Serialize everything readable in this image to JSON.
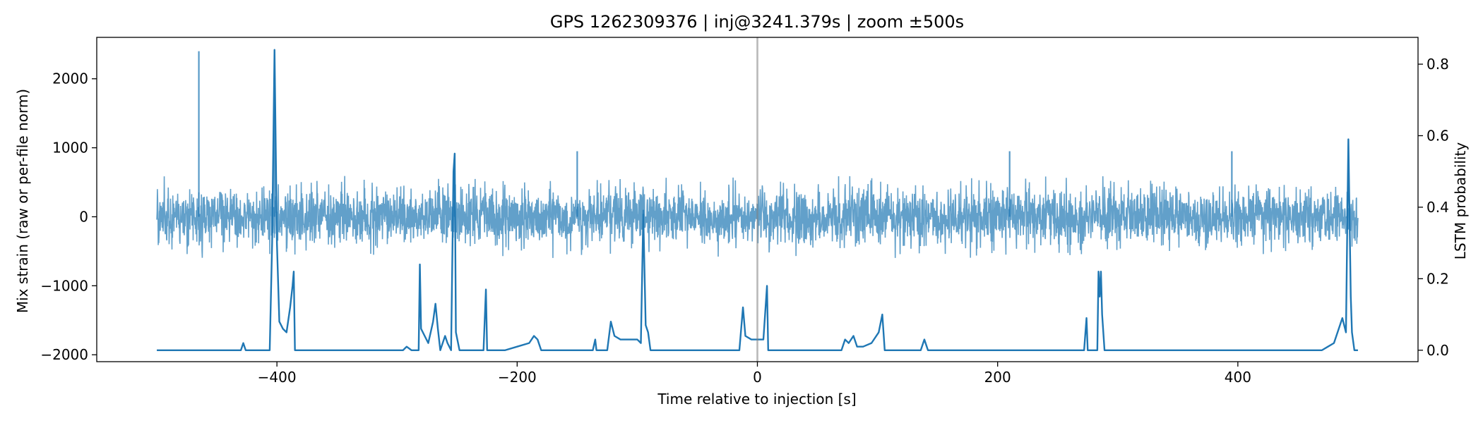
{
  "chart_data": {
    "type": "line",
    "title": "GPS 1262309376 | inj@3241.379s | zoom ±500s",
    "xlabel": "Time relative to injection [s]",
    "ylabel_left": "Mix strain (raw or per-file norm)",
    "ylabel_right": "LSTM probability",
    "xlim": [
      -550,
      550
    ],
    "ylim_left": [
      -2100,
      2600
    ],
    "ylim_right": [
      -0.032,
      0.875
    ],
    "x_ticks": [
      -400,
      -200,
      0,
      200,
      400
    ],
    "x_tick_labels": [
      "−400",
      "−200",
      "0",
      "200",
      "400"
    ],
    "y_left_ticks": [
      -2000,
      -1000,
      0,
      1000,
      2000
    ],
    "y_left_tick_labels": [
      "−2000",
      "−1000",
      "0",
      "1000",
      "2000"
    ],
    "y_right_ticks": [
      0.0,
      0.2,
      0.4,
      0.6,
      0.8
    ],
    "y_right_tick_labels": [
      "0.0",
      "0.2",
      "0.4",
      "0.6",
      "0.8"
    ],
    "injection_marker_x": 0,
    "grid": false,
    "legend": "none",
    "colors": {
      "strain": "#1f77b4",
      "probability": "#1f77b4",
      "injection_line": "#b0b0b0"
    },
    "series": [
      {
        "role": "strain",
        "axis": "left",
        "x_range": [
          -500,
          500
        ],
        "noise_envelope": 600,
        "spikes": [
          {
            "x": -465,
            "y": 2400
          },
          {
            "x": -402,
            "y": 2400
          },
          {
            "x": -252,
            "y": 800
          },
          {
            "x": -95,
            "y": 100
          },
          {
            "x": -150,
            "y": 950
          },
          {
            "x": 210,
            "y": 950
          },
          {
            "x": 395,
            "y": 950
          }
        ]
      },
      {
        "role": "probability",
        "axis": "right",
        "points": [
          [
            -500,
            0.0
          ],
          [
            -430,
            0.0
          ],
          [
            -428,
            0.02
          ],
          [
            -426,
            0.0
          ],
          [
            -406,
            0.0
          ],
          [
            -404,
            0.3
          ],
          [
            -402,
            0.84
          ],
          [
            -400,
            0.3
          ],
          [
            -398,
            0.08
          ],
          [
            -395,
            0.06
          ],
          [
            -392,
            0.05
          ],
          [
            -389,
            0.12
          ],
          [
            -387,
            0.18
          ],
          [
            -386,
            0.22
          ],
          [
            -385,
            0.0
          ],
          [
            -295,
            0.0
          ],
          [
            -292,
            0.01
          ],
          [
            -288,
            0.0
          ],
          [
            -282,
            0.0
          ],
          [
            -281,
            0.24
          ],
          [
            -280,
            0.06
          ],
          [
            -277,
            0.04
          ],
          [
            -274,
            0.02
          ],
          [
            -270,
            0.08
          ],
          [
            -268,
            0.13
          ],
          [
            -266,
            0.06
          ],
          [
            -264,
            0.0
          ],
          [
            -260,
            0.04
          ],
          [
            -258,
            0.02
          ],
          [
            -255,
            0.0
          ],
          [
            -253,
            0.5
          ],
          [
            -252,
            0.55
          ],
          [
            -251,
            0.05
          ],
          [
            -248,
            0.0
          ],
          [
            -228,
            0.0
          ],
          [
            -226,
            0.17
          ],
          [
            -225,
            0.0
          ],
          [
            -210,
            0.0
          ],
          [
            -200,
            0.01
          ],
          [
            -190,
            0.02
          ],
          [
            -186,
            0.04
          ],
          [
            -183,
            0.03
          ],
          [
            -180,
            0.0
          ],
          [
            -137,
            0.0
          ],
          [
            -135,
            0.03
          ],
          [
            -134,
            0.0
          ],
          [
            -125,
            0.0
          ],
          [
            -122,
            0.08
          ],
          [
            -119,
            0.04
          ],
          [
            -114,
            0.03
          ],
          [
            -108,
            0.03
          ],
          [
            -100,
            0.03
          ],
          [
            -97,
            0.02
          ],
          [
            -95,
            0.38
          ],
          [
            -93,
            0.07
          ],
          [
            -91,
            0.05
          ],
          [
            -89,
            0.0
          ],
          [
            -15,
            0.0
          ],
          [
            -12,
            0.12
          ],
          [
            -10,
            0.04
          ],
          [
            -5,
            0.03
          ],
          [
            0,
            0.03
          ],
          [
            5,
            0.03
          ],
          [
            8,
            0.18
          ],
          [
            9,
            0.0
          ],
          [
            70,
            0.0
          ],
          [
            73,
            0.03
          ],
          [
            76,
            0.02
          ],
          [
            80,
            0.04
          ],
          [
            83,
            0.01
          ],
          [
            88,
            0.01
          ],
          [
            95,
            0.02
          ],
          [
            101,
            0.05
          ],
          [
            104,
            0.1
          ],
          [
            106,
            0.0
          ],
          [
            136,
            0.0
          ],
          [
            139,
            0.03
          ],
          [
            142,
            0.0
          ],
          [
            272,
            0.0
          ],
          [
            274,
            0.09
          ],
          [
            275,
            0.0
          ],
          [
            283,
            0.0
          ],
          [
            284,
            0.22
          ],
          [
            285,
            0.15
          ],
          [
            286,
            0.22
          ],
          [
            287,
            0.1
          ],
          [
            289,
            0.0
          ],
          [
            470,
            0.0
          ],
          [
            475,
            0.01
          ],
          [
            480,
            0.02
          ],
          [
            484,
            0.06
          ],
          [
            487,
            0.09
          ],
          [
            490,
            0.05
          ],
          [
            492,
            0.59
          ],
          [
            494,
            0.15
          ],
          [
            495,
            0.05
          ],
          [
            497,
            0.0
          ],
          [
            500,
            0.0
          ]
        ]
      }
    ]
  }
}
